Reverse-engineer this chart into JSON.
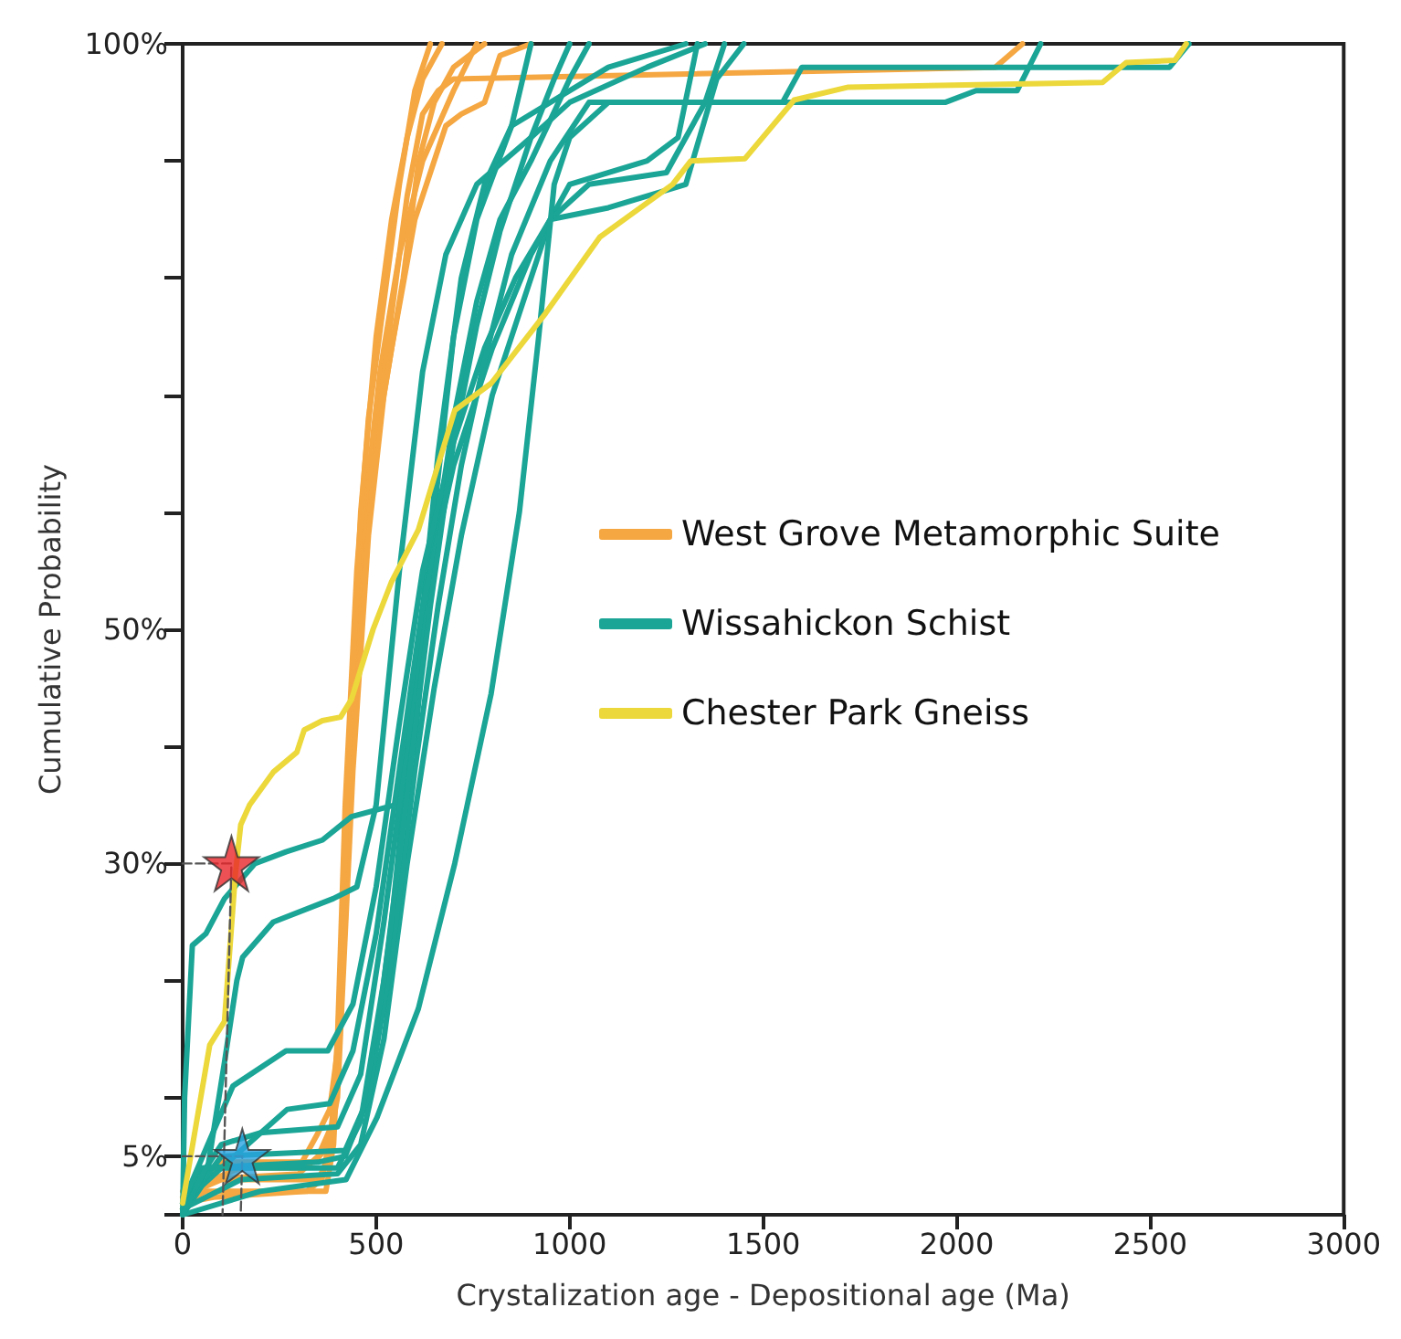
{
  "chart_data": {
    "type": "line",
    "xlabel": "Crystalization age - Depositional age (Ma)",
    "ylabel": "Cumulative Probability",
    "xlim": [
      0,
      3000
    ],
    "xticks": [
      0,
      500,
      1000,
      1500,
      2000,
      2500,
      3000
    ],
    "ylim": [
      0,
      100
    ],
    "yticks": [
      {
        "value": 0,
        "label": null
      },
      {
        "value": 5,
        "label": "5%"
      },
      {
        "value": 10,
        "label": null
      },
      {
        "value": 20,
        "label": null
      },
      {
        "value": 30,
        "label": "30%"
      },
      {
        "value": 40,
        "label": null
      },
      {
        "value": 50,
        "label": "50%"
      },
      {
        "value": 60,
        "label": null
      },
      {
        "value": 70,
        "label": null
      },
      {
        "value": 80,
        "label": null
      },
      {
        "value": 90,
        "label": null
      },
      {
        "value": 100,
        "label": "100%"
      }
    ],
    "grid": false,
    "legend": "right",
    "marker": "none",
    "line_style": "solid",
    "series": [
      {
        "name": "West Grove Metamorphic Suite",
        "color": "#f5a742",
        "x": [
          0,
          30,
          100,
          350,
          380,
          400,
          420,
          450,
          480,
          520,
          560,
          600,
          640
        ],
        "values": [
          0.5,
          2,
          3,
          3,
          5,
          15,
          35,
          55,
          68,
          78,
          88,
          96,
          100
        ]
      },
      {
        "color": "#f5a742",
        "x": [
          0,
          60,
          370,
          390,
          410,
          440,
          470,
          510,
          560,
          620,
          700,
          760
        ],
        "values": [
          1,
          2,
          2,
          6,
          20,
          45,
          60,
          72,
          82,
          90,
          96,
          100
        ]
      },
      {
        "color": "#f5a742",
        "x": [
          0,
          100,
          340,
          380,
          400,
          420,
          450,
          490,
          540,
          600,
          680,
          720,
          780,
          820,
          900
        ],
        "values": [
          0.5,
          4.5,
          4.5,
          6,
          12,
          30,
          50,
          64,
          74,
          85,
          93,
          94,
          95,
          99,
          100
        ]
      },
      {
        "color": "#f5a742",
        "x": [
          0,
          50,
          300,
          350,
          390,
          420,
          440,
          470,
          500,
          540,
          580,
          620,
          660,
          700,
          2100,
          2170
        ],
        "values": [
          1.5,
          3,
          3.5,
          5,
          8,
          25,
          40,
          55,
          66,
          77,
          87,
          94,
          96,
          97,
          98,
          100
        ]
      },
      {
        "color": "#f5a742",
        "x": [
          0,
          80,
          320,
          360,
          400,
          440,
          480,
          520,
          570,
          610,
          650,
          700,
          780
        ],
        "values": [
          1,
          1.5,
          2,
          3,
          10,
          38,
          58,
          70,
          80,
          90,
          95,
          98,
          100
        ]
      },
      {
        "color": "#f5a742",
        "x": [
          0,
          150,
          300,
          350,
          380,
          400,
          430,
          460,
          500,
          540,
          580,
          620,
          670
        ],
        "values": [
          2,
          4,
          4,
          7,
          9,
          14,
          40,
          60,
          75,
          85,
          92,
          97,
          100
        ]
      },
      {
        "name": "Wissahickon Schist",
        "color": "#1aa596",
        "x": [
          0,
          5,
          25,
          60,
          108,
          187,
          267,
          361,
          436,
          548,
          600,
          650,
          700,
          760,
          850,
          1100,
          1300
        ],
        "values": [
          0,
          10,
          23,
          24,
          27,
          30,
          31,
          32,
          34,
          35,
          40,
          60,
          75,
          85,
          93,
          98,
          100
        ]
      },
      {
        "color": "#1aa596",
        "x": [
          0,
          60,
          108,
          140,
          155,
          234,
          389,
          450,
          500,
          560,
          620,
          680,
          760,
          900,
          1000,
          1200,
          1350
        ],
        "values": [
          0,
          3,
          13,
          20,
          22,
          25,
          27,
          28,
          35,
          55,
          72,
          82,
          88,
          92,
          95,
          98,
          100
        ]
      },
      {
        "color": "#1aa596",
        "x": [
          0,
          50,
          350,
          420,
          480,
          540,
          600,
          660,
          720,
          780,
          850,
          900
        ],
        "values": [
          0,
          4,
          4.5,
          5,
          10,
          25,
          45,
          65,
          80,
          88,
          93,
          100
        ]
      },
      {
        "color": "#1aa596",
        "x": [
          0,
          100,
          200,
          400,
          460,
          520,
          580,
          640,
          700,
          760,
          820,
          900,
          1000,
          1050
        ],
        "values": [
          1,
          6,
          7,
          7.5,
          12,
          25,
          40,
          55,
          68,
          78,
          85,
          90,
          97,
          100
        ]
      },
      {
        "color": "#1aa596",
        "x": [
          0,
          100,
          270,
          380,
          440,
          500,
          560,
          620,
          700,
          800,
          900,
          1000,
          1200,
          1280,
          1330
        ],
        "values": [
          1,
          4,
          9,
          9.5,
          14,
          24,
          38,
          52,
          64,
          74,
          82,
          88,
          90,
          92,
          100
        ]
      },
      {
        "color": "#1aa596",
        "x": [
          0,
          150,
          400,
          460,
          520,
          580,
          650,
          720,
          800,
          880,
          950,
          1050,
          1250,
          1350,
          1400
        ],
        "values": [
          0.5,
          3,
          3.5,
          6,
          15,
          30,
          45,
          58,
          70,
          78,
          85,
          88,
          89,
          95,
          100
        ]
      },
      {
        "color": "#1aa596",
        "x": [
          0,
          130,
          267,
          375,
          440,
          500,
          560,
          620,
          700,
          780,
          860,
          950,
          1100,
          1300,
          1380,
          1450
        ],
        "values": [
          1,
          11,
          14,
          14,
          18,
          28,
          42,
          55,
          66,
          74,
          80,
          85,
          86,
          88,
          97,
          100
        ]
      },
      {
        "color": "#1aa596",
        "x": [
          0,
          200,
          422,
          502,
          609,
          703,
          797,
          870,
          920,
          960,
          1000,
          1100,
          1550,
          1600,
          2550,
          2600
        ],
        "values": [
          0,
          2,
          3,
          8.3,
          17.6,
          30,
          44.5,
          60,
          75,
          88,
          92,
          95,
          95,
          98,
          98,
          100
        ]
      },
      {
        "color": "#1aa596",
        "x": [
          0,
          100,
          420,
          480,
          540,
          600,
          660,
          720,
          780,
          850,
          950,
          1050,
          1970,
          2050,
          2156,
          2217
        ],
        "values": [
          0.5,
          5,
          5.5,
          10,
          22,
          38,
          52,
          64,
          73,
          82,
          90,
          95,
          95,
          96,
          96,
          100
        ]
      },
      {
        "color": "#1aa596",
        "x": [
          0,
          60,
          400,
          460,
          520,
          580,
          640,
          700,
          760,
          820,
          900,
          960,
          1000
        ],
        "values": [
          0,
          4,
          4,
          8,
          20,
          36,
          52,
          66,
          76,
          84,
          92,
          97,
          100
        ]
      },
      {
        "name": "Chester Park Gneiss",
        "color": "#ecd83a",
        "x": [
          0,
          70,
          108,
          136,
          150,
          173,
          234,
          295,
          314,
          361,
          408,
          436,
          492,
          539,
          609,
          703,
          797,
          938,
          1078,
          1266,
          1313,
          1453,
          1580,
          1720,
          2377,
          2438,
          2564,
          2593
        ],
        "values": [
          1,
          14.5,
          16.5,
          29,
          33.3,
          35,
          37.8,
          39.5,
          41.4,
          42.2,
          42.5,
          44,
          50,
          54,
          58.5,
          68.7,
          71,
          77,
          83.5,
          88,
          90,
          90.2,
          95.2,
          96.3,
          96.7,
          98.4,
          98.6,
          100
        ]
      },
      {
        "color": "#555555",
        "line_style": "dashed",
        "x": [
          0,
          126,
          103
        ],
        "values": [
          30,
          30,
          0
        ]
      },
      {
        "color": "#555555",
        "line_style": "dashed",
        "x": [
          0,
          154,
          150
        ],
        "values": [
          5,
          5,
          0
        ]
      },
      {
        "type": "scatter",
        "marker": "star",
        "color": "#e8262a",
        "x": [
          126
        ],
        "values": [
          30
        ]
      },
      {
        "type": "scatter",
        "marker": "star",
        "color": "#29a3e0",
        "x": [
          154
        ],
        "values": [
          5
        ]
      }
    ]
  }
}
